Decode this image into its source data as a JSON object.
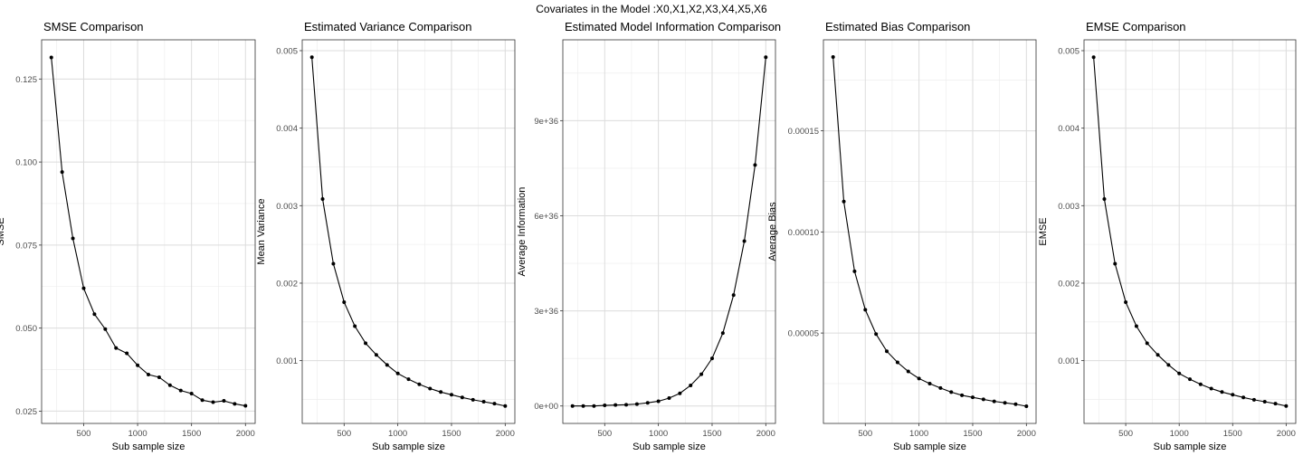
{
  "page_title": "Covariates in the Model :X0,X1,X2,X3,X4,X5,X6",
  "chart_data": [
    {
      "type": "line",
      "title": "SMSE Comparison",
      "xlabel": "Sub sample size",
      "ylabel": "SMSE",
      "x": [
        200,
        300,
        400,
        500,
        600,
        700,
        800,
        900,
        1000,
        1100,
        1200,
        1300,
        1400,
        1500,
        1600,
        1700,
        1800,
        1900,
        2000
      ],
      "y": [
        0.1315,
        0.097,
        0.077,
        0.062,
        0.0542,
        0.0497,
        0.044,
        0.0424,
        0.0388,
        0.036,
        0.0352,
        0.0328,
        0.0312,
        0.0303,
        0.0283,
        0.0277,
        0.0281,
        0.0272,
        0.0266
      ],
      "xticks": [
        500,
        1000,
        1500,
        2000
      ],
      "xtick_labels": [
        "500",
        "1000",
        "1500",
        "2000"
      ],
      "yticks": [
        0.025,
        0.05,
        0.075,
        0.1,
        0.125
      ],
      "ytick_labels": [
        "0.025",
        "0.050",
        "0.075",
        "0.100",
        "0.125"
      ],
      "xlim": [
        110,
        2090
      ],
      "ylim": [
        0.0213,
        0.1368
      ],
      "grid": true,
      "markers": true
    },
    {
      "type": "line",
      "title": "Estimated Variance Comparison",
      "xlabel": "Sub sample size",
      "ylabel": "Mean Variance",
      "x": [
        200,
        300,
        400,
        500,
        600,
        700,
        800,
        900,
        1000,
        1100,
        1200,
        1300,
        1400,
        1500,
        1600,
        1700,
        1800,
        1900,
        2000
      ],
      "y": [
        0.004915,
        0.003085,
        0.00225,
        0.001755,
        0.001445,
        0.001225,
        0.001075,
        0.000945,
        0.000835,
        0.00076,
        0.000695,
        0.00064,
        0.000595,
        0.00056,
        0.000525,
        0.000495,
        0.00047,
        0.000445,
        0.000415
      ],
      "xticks": [
        500,
        1000,
        1500,
        2000
      ],
      "xtick_labels": [
        "500",
        "1000",
        "1500",
        "2000"
      ],
      "yticks": [
        0.001,
        0.002,
        0.003,
        0.004,
        0.005
      ],
      "ytick_labels": [
        "0.001",
        "0.002",
        "0.003",
        "0.004",
        "0.005"
      ],
      "xlim": [
        110,
        2090
      ],
      "ylim": [
        0.00019,
        0.00514
      ],
      "grid": true,
      "markers": true
    },
    {
      "type": "line",
      "title": "Estimated Model Information Comparison",
      "xlabel": "Sub sample size",
      "ylabel": "Average Information",
      "x": [
        200,
        300,
        400,
        500,
        600,
        700,
        800,
        900,
        1000,
        1100,
        1200,
        1300,
        1400,
        1500,
        1600,
        1700,
        1800,
        1900,
        2000
      ],
      "y": [
        0,
        0,
        0,
        2e+34,
        3e+34,
        4e+34,
        6e+34,
        1e+35,
        1.5e+35,
        2.5e+35,
        4e+35,
        6.5e+35,
        1e+36,
        1.5e+36,
        2.3e+36,
        3.5e+36,
        5.2e+36,
        7.6e+36,
        1.1e+37
      ],
      "xticks": [
        500,
        1000,
        1500,
        2000
      ],
      "xtick_labels": [
        "500",
        "1000",
        "1500",
        "2000"
      ],
      "yticks": [
        0,
        3e+36,
        6e+36,
        9e+36
      ],
      "ytick_labels": [
        "0e+00",
        "3e+36",
        "6e+36",
        "9e+36"
      ],
      "xlim": [
        110,
        2090
      ],
      "ylim": [
        -5.5e+35,
        1.155e+37
      ],
      "grid": true,
      "markers": true
    },
    {
      "type": "line",
      "title": "Estimated Bias Comparison",
      "xlabel": "Sub sample size",
      "ylabel": "Average Bias",
      "x": [
        200,
        300,
        400,
        500,
        600,
        700,
        800,
        900,
        1000,
        1100,
        1200,
        1300,
        1400,
        1500,
        1600,
        1700,
        1800,
        1900,
        2000
      ],
      "y": [
        0.0001865,
        0.000115,
        8.05e-05,
        6.15e-05,
        4.95e-05,
        4.1e-05,
        3.55e-05,
        3.1e-05,
        2.75e-05,
        2.5e-05,
        2.28e-05,
        2.08e-05,
        1.92e-05,
        1.82e-05,
        1.72e-05,
        1.62e-05,
        1.55e-05,
        1.48e-05,
        1.38e-05
      ],
      "xticks": [
        500,
        1000,
        1500,
        2000
      ],
      "xtick_labels": [
        "500",
        "1000",
        "1500",
        "2000"
      ],
      "yticks": [
        5e-05,
        0.0001,
        0.00015
      ],
      "ytick_labels": [
        "0.00005",
        "0.00010",
        "0.00015"
      ],
      "xlim": [
        110,
        2090
      ],
      "ylim": [
        5.3e-06,
        0.000195
      ],
      "grid": true,
      "markers": true
    },
    {
      "type": "line",
      "title": "EMSE Comparison",
      "xlabel": "Sub sample size",
      "ylabel": "EMSE",
      "x": [
        200,
        300,
        400,
        500,
        600,
        700,
        800,
        900,
        1000,
        1100,
        1200,
        1300,
        1400,
        1500,
        1600,
        1700,
        1800,
        1900,
        2000
      ],
      "y": [
        0.004915,
        0.003085,
        0.00225,
        0.001755,
        0.001445,
        0.001225,
        0.001075,
        0.000945,
        0.000835,
        0.00076,
        0.000695,
        0.00064,
        0.000595,
        0.00056,
        0.000525,
        0.000495,
        0.00047,
        0.000445,
        0.000415
      ],
      "xticks": [
        500,
        1000,
        1500,
        2000
      ],
      "xtick_labels": [
        "500",
        "1000",
        "1500",
        "2000"
      ],
      "yticks": [
        0.001,
        0.002,
        0.003,
        0.004,
        0.005
      ],
      "ytick_labels": [
        "0.001",
        "0.002",
        "0.003",
        "0.004",
        "0.005"
      ],
      "xlim": [
        110,
        2090
      ],
      "ylim": [
        0.00019,
        0.00514
      ],
      "grid": true,
      "markers": true
    }
  ]
}
